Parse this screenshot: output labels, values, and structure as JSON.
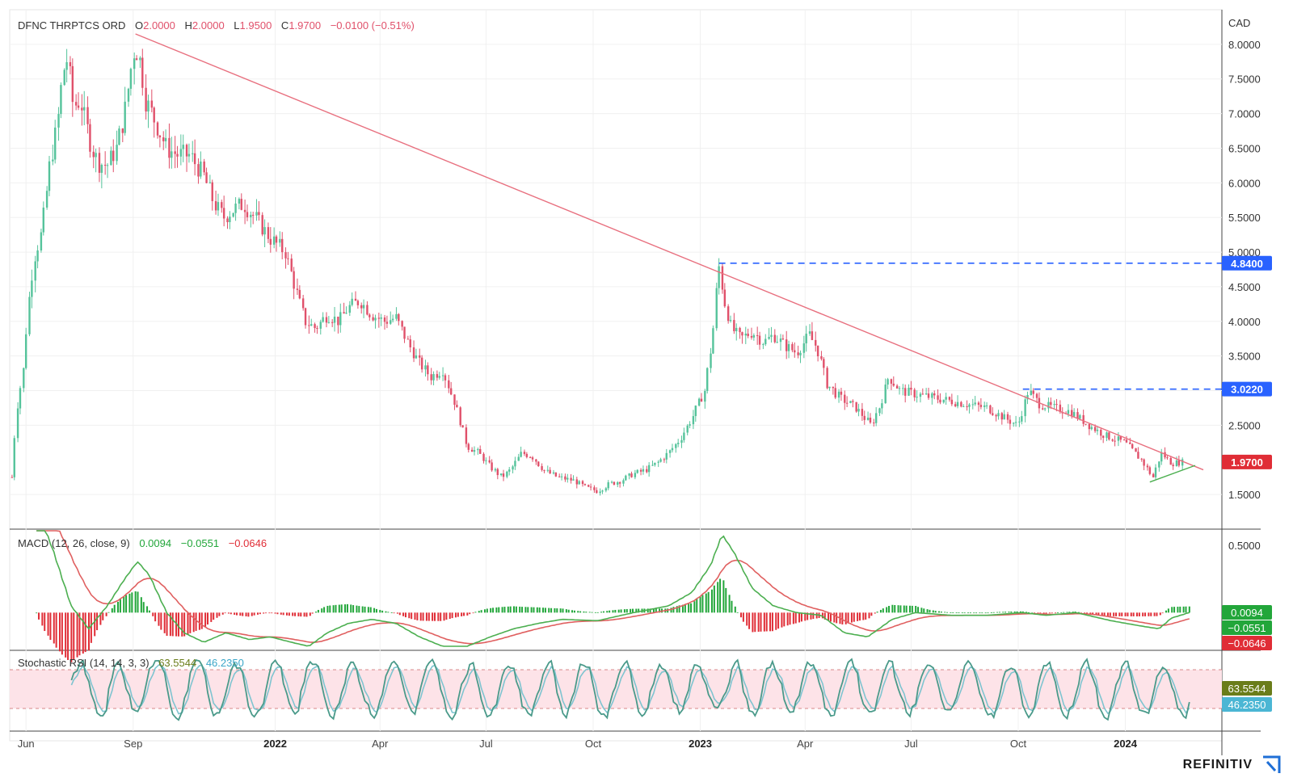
{
  "header": {
    "symbol": "DFNC THRPTCS ORD",
    "o_label": "O",
    "o_value": "2.0000",
    "h_label": "H",
    "h_value": "2.0000",
    "l_label": "L",
    "l_value": "1.9500",
    "c_label": "C",
    "c_value": "1.9700",
    "change": "−0.0100 (−0.51%)"
  },
  "brand": {
    "name": "REFINITIV",
    "icon": "refinitiv-logo-icon"
  },
  "colors": {
    "up": "#26a69a",
    "up_bar": "#55c39b",
    "down": "#e0506a",
    "trendline": "#e8707f",
    "support": "#4caf50",
    "level": "#2962ff",
    "macd": "#4caf50",
    "signal": "#e06060",
    "stoch_k": "#4a9a8a",
    "stoch_d": "#7ec4d0",
    "stoch_band": "#fde3e8",
    "macd_value_bg": "#22a63a",
    "signal_value_bg": "#22a63a",
    "hist_value_bg": "#e02d36",
    "k_value_bg": "#6a7d1a",
    "d_value_bg": "#4bb6d4"
  },
  "chart_data": [
    {
      "type": "candlestick",
      "pane": "price",
      "currency": "CAD",
      "x_ticks": [
        "Jun",
        "Sep",
        "2022",
        "Apr",
        "Jul",
        "Oct",
        "2023",
        "Apr",
        "Jul",
        "Oct",
        "2024"
      ],
      "y_ticks": [
        "8.0000",
        "7.5000",
        "7.0000",
        "6.5000",
        "6.0000",
        "5.5000",
        "5.0000",
        "4.5000",
        "4.0000",
        "3.5000",
        "3.0000",
        "2.5000",
        "1.5000"
      ],
      "ylim": [
        1.0,
        8.5
      ],
      "approx_path": [
        [
          "2021-05-20",
          1.75
        ],
        [
          "2021-05-24",
          2.7
        ],
        [
          "2021-05-30",
          3.3
        ],
        [
          "2021-06-03",
          4.2
        ],
        [
          "2021-06-08",
          4.9
        ],
        [
          "2021-06-15",
          5.3
        ],
        [
          "2021-06-22",
          6.3
        ],
        [
          "2021-06-28",
          6.8
        ],
        [
          "2021-07-03",
          7.6
        ],
        [
          "2021-07-07",
          7.8
        ],
        [
          "2021-07-12",
          7.1
        ],
        [
          "2021-07-18",
          7.2
        ],
        [
          "2021-07-22",
          6.9
        ],
        [
          "2021-07-28",
          6.5
        ],
        [
          "2021-08-02",
          6.3
        ],
        [
          "2021-08-10",
          6.25
        ],
        [
          "2021-08-18",
          6.5
        ],
        [
          "2021-08-25",
          7.0
        ],
        [
          "2021-08-30",
          7.6
        ],
        [
          "2021-09-03",
          8.0
        ],
        [
          "2021-09-08",
          7.7
        ],
        [
          "2021-09-12",
          7.2
        ],
        [
          "2021-09-20",
          6.9
        ],
        [
          "2021-09-30",
          6.5
        ],
        [
          "2021-10-10",
          6.4
        ],
        [
          "2021-10-20",
          6.4
        ],
        [
          "2021-11-01",
          6.1
        ],
        [
          "2021-11-10",
          5.7
        ],
        [
          "2021-11-18",
          5.5
        ],
        [
          "2021-11-25",
          5.6
        ],
        [
          "2021-12-05",
          5.7
        ],
        [
          "2021-12-15",
          5.5
        ],
        [
          "2021-12-28",
          5.2
        ],
        [
          "2022-01-10",
          5.0
        ],
        [
          "2022-01-20",
          4.4
        ],
        [
          "2022-01-27",
          4.0
        ],
        [
          "2022-02-05",
          3.9
        ],
        [
          "2022-02-15",
          4.1
        ],
        [
          "2022-02-25",
          4.0
        ],
        [
          "2022-03-05",
          4.2
        ],
        [
          "2022-03-15",
          4.3
        ],
        [
          "2022-03-25",
          4.1
        ],
        [
          "2022-04-05",
          4.0
        ],
        [
          "2022-04-15",
          4.05
        ],
        [
          "2022-04-25",
          3.7
        ],
        [
          "2022-05-05",
          3.4
        ],
        [
          "2022-05-15",
          3.2
        ],
        [
          "2022-05-25",
          3.3
        ],
        [
          "2022-06-05",
          2.8
        ],
        [
          "2022-06-15",
          2.2
        ],
        [
          "2022-06-25",
          2.1
        ],
        [
          "2022-07-05",
          1.9
        ],
        [
          "2022-07-15",
          1.75
        ],
        [
          "2022-07-22",
          1.85
        ],
        [
          "2022-08-01",
          2.1
        ],
        [
          "2022-08-10",
          2.05
        ],
        [
          "2022-08-20",
          1.85
        ],
        [
          "2022-09-01",
          1.75
        ],
        [
          "2022-09-15",
          1.7
        ],
        [
          "2022-09-25",
          1.6
        ],
        [
          "2022-10-05",
          1.55
        ],
        [
          "2022-10-15",
          1.65
        ],
        [
          "2022-10-25",
          1.7
        ],
        [
          "2022-11-05",
          1.8
        ],
        [
          "2022-11-15",
          1.85
        ],
        [
          "2022-11-25",
          1.95
        ],
        [
          "2022-12-05",
          2.1
        ],
        [
          "2022-12-15",
          2.3
        ],
        [
          "2022-12-25",
          2.6
        ],
        [
          "2023-01-05",
          3.0
        ],
        [
          "2023-01-12",
          3.8
        ],
        [
          "2023-01-17",
          4.84
        ],
        [
          "2023-01-22",
          4.3
        ],
        [
          "2023-01-28",
          3.9
        ],
        [
          "2023-02-05",
          3.75
        ],
        [
          "2023-02-15",
          3.85
        ],
        [
          "2023-02-25",
          3.7
        ],
        [
          "2023-03-05",
          3.8
        ],
        [
          "2023-03-15",
          3.65
        ],
        [
          "2023-03-25",
          3.55
        ],
        [
          "2023-04-05",
          3.8
        ],
        [
          "2023-04-12",
          3.6
        ],
        [
          "2023-04-20",
          3.1
        ],
        [
          "2023-05-01",
          2.9
        ],
        [
          "2023-05-15",
          2.75
        ],
        [
          "2023-05-28",
          2.5
        ],
        [
          "2023-06-05",
          2.8
        ],
        [
          "2023-06-12",
          3.2
        ],
        [
          "2023-06-22",
          3.0
        ],
        [
          "2023-07-05",
          2.95
        ],
        [
          "2023-07-20",
          2.9
        ],
        [
          "2023-08-05",
          2.85
        ],
        [
          "2023-08-20",
          2.8
        ],
        [
          "2023-09-05",
          2.75
        ],
        [
          "2023-09-20",
          2.6
        ],
        [
          "2023-10-01",
          2.5
        ],
        [
          "2023-10-10",
          3.0
        ],
        [
          "2023-10-20",
          2.8
        ],
        [
          "2023-11-01",
          2.75
        ],
        [
          "2023-11-15",
          2.7
        ],
        [
          "2023-12-01",
          2.5
        ],
        [
          "2023-12-15",
          2.35
        ],
        [
          "2024-01-01",
          2.25
        ],
        [
          "2024-01-15",
          2.0
        ],
        [
          "2024-01-25",
          1.75
        ],
        [
          "2024-02-01",
          2.1
        ],
        [
          "2024-02-10",
          1.95
        ],
        [
          "2024-02-20",
          1.97
        ]
      ],
      "trendline": {
        "from": [
          "2021-09-03",
          8.15
        ],
        "to": [
          "2024-03-01",
          1.88
        ]
      },
      "support_line": {
        "from": [
          "2024-01-22",
          1.68
        ],
        "to": [
          "2024-03-01",
          1.92
        ]
      },
      "levels": [
        {
          "value": 4.84,
          "label": "4.8400",
          "from": "2023-01-17"
        },
        {
          "value": 3.022,
          "label": "3.0220",
          "from": "2023-10-05"
        }
      ],
      "last_price": {
        "value": 1.97,
        "label": "1.9700"
      }
    },
    {
      "type": "line",
      "pane": "macd",
      "title": "MACD (12, 26, close, 9)",
      "legend_values": [
        "0.0094",
        "−0.0551",
        "−0.0646"
      ],
      "y_ticks": [
        "0.5000"
      ],
      "ylim": [
        -0.28,
        0.62
      ],
      "macd_approx": [
        [
          "2021-06-10",
          0.8
        ],
        [
          "2021-06-25",
          0.45
        ],
        [
          "2021-07-10",
          0.05
        ],
        [
          "2021-07-25",
          -0.12
        ],
        [
          "2021-08-10",
          0.05
        ],
        [
          "2021-08-25",
          0.25
        ],
        [
          "2021-09-05",
          0.38
        ],
        [
          "2021-09-15",
          0.28
        ],
        [
          "2021-09-30",
          0.0
        ],
        [
          "2021-10-15",
          -0.15
        ],
        [
          "2021-11-01",
          -0.22
        ],
        [
          "2021-11-20",
          -0.15
        ],
        [
          "2021-12-10",
          -0.2
        ],
        [
          "2021-12-28",
          -0.18
        ],
        [
          "2022-01-15",
          -0.22
        ],
        [
          "2022-01-30",
          -0.25
        ],
        [
          "2022-02-15",
          -0.15
        ],
        [
          "2022-03-05",
          -0.08
        ],
        [
          "2022-03-25",
          -0.05
        ],
        [
          "2022-04-15",
          -0.08
        ],
        [
          "2022-05-05",
          -0.18
        ],
        [
          "2022-05-25",
          -0.25
        ],
        [
          "2022-06-15",
          -0.25
        ],
        [
          "2022-07-05",
          -0.18
        ],
        [
          "2022-07-25",
          -0.12
        ],
        [
          "2022-08-15",
          -0.08
        ],
        [
          "2022-09-05",
          -0.05
        ],
        [
          "2022-10-05",
          -0.06
        ],
        [
          "2022-11-05",
          0.0
        ],
        [
          "2022-12-05",
          0.05
        ],
        [
          "2022-12-25",
          0.15
        ],
        [
          "2023-01-10",
          0.35
        ],
        [
          "2023-01-20",
          0.58
        ],
        [
          "2023-01-30",
          0.45
        ],
        [
          "2023-02-15",
          0.18
        ],
        [
          "2023-03-05",
          0.05
        ],
        [
          "2023-03-25",
          0.0
        ],
        [
          "2023-04-15",
          -0.02
        ],
        [
          "2023-05-05",
          -0.15
        ],
        [
          "2023-05-25",
          -0.18
        ],
        [
          "2023-06-15",
          -0.05
        ],
        [
          "2023-07-05",
          0.0
        ],
        [
          "2023-08-05",
          -0.02
        ],
        [
          "2023-09-05",
          -0.02
        ],
        [
          "2023-10-05",
          0.0
        ],
        [
          "2023-10-25",
          -0.02
        ],
        [
          "2023-11-20",
          0.0
        ],
        [
          "2023-12-20",
          -0.06
        ],
        [
          "2024-01-15",
          -0.1
        ],
        [
          "2024-01-30",
          -0.12
        ],
        [
          "2024-02-10",
          -0.04
        ],
        [
          "2024-02-25",
          0.0
        ]
      ]
    },
    {
      "type": "line",
      "pane": "stoch_rsi",
      "title": "Stochastic RSI (14, 14, 3, 3)",
      "legend_values": [
        "63.5544",
        "46.2350"
      ],
      "ylim": [
        0,
        100
      ],
      "band": [
        20,
        80
      ]
    }
  ]
}
